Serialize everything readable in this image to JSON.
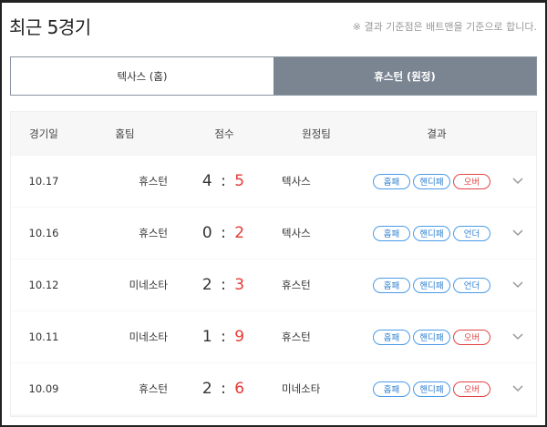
{
  "title": "최근 5경기",
  "note": "※ 결과 기준점은 배트맨을 기준으로 합니다.",
  "tabs": [
    {
      "label": "텍사스 (홈)",
      "active": false
    },
    {
      "label": "휴스턴 (원정)",
      "active": true
    }
  ],
  "columns": [
    "경기일",
    "홈팀",
    "점수",
    "원정팀",
    "결과"
  ],
  "rows": [
    {
      "date": "10.17",
      "home": "휴스턴",
      "home_score": "4",
      "away_score": "5",
      "away": "텍사스",
      "badges": [
        "홈패",
        "핸디패",
        "오버"
      ]
    },
    {
      "date": "10.16",
      "home": "휴스턴",
      "home_score": "0",
      "away_score": "2",
      "away": "텍사스",
      "badges": [
        "홈패",
        "핸디패",
        "언더"
      ]
    },
    {
      "date": "10.12",
      "home": "미네소타",
      "home_score": "2",
      "away_score": "3",
      "away": "휴스턴",
      "badges": [
        "홈패",
        "핸디패",
        "언더"
      ]
    },
    {
      "date": "10.11",
      "home": "미네소타",
      "home_score": "1",
      "away_score": "9",
      "away": "휴스턴",
      "badges": [
        "홈패",
        "핸디패",
        "오버"
      ]
    },
    {
      "date": "10.09",
      "home": "휴스턴",
      "home_score": "2",
      "away_score": "6",
      "away": "미네소타",
      "badges": [
        "홈패",
        "핸디패",
        "오버"
      ]
    }
  ],
  "colors": {
    "blue_badge": "#4a9be8",
    "red_badge": "#e04444",
    "active_tab": "#7b8592",
    "score_red": "#e53935"
  }
}
